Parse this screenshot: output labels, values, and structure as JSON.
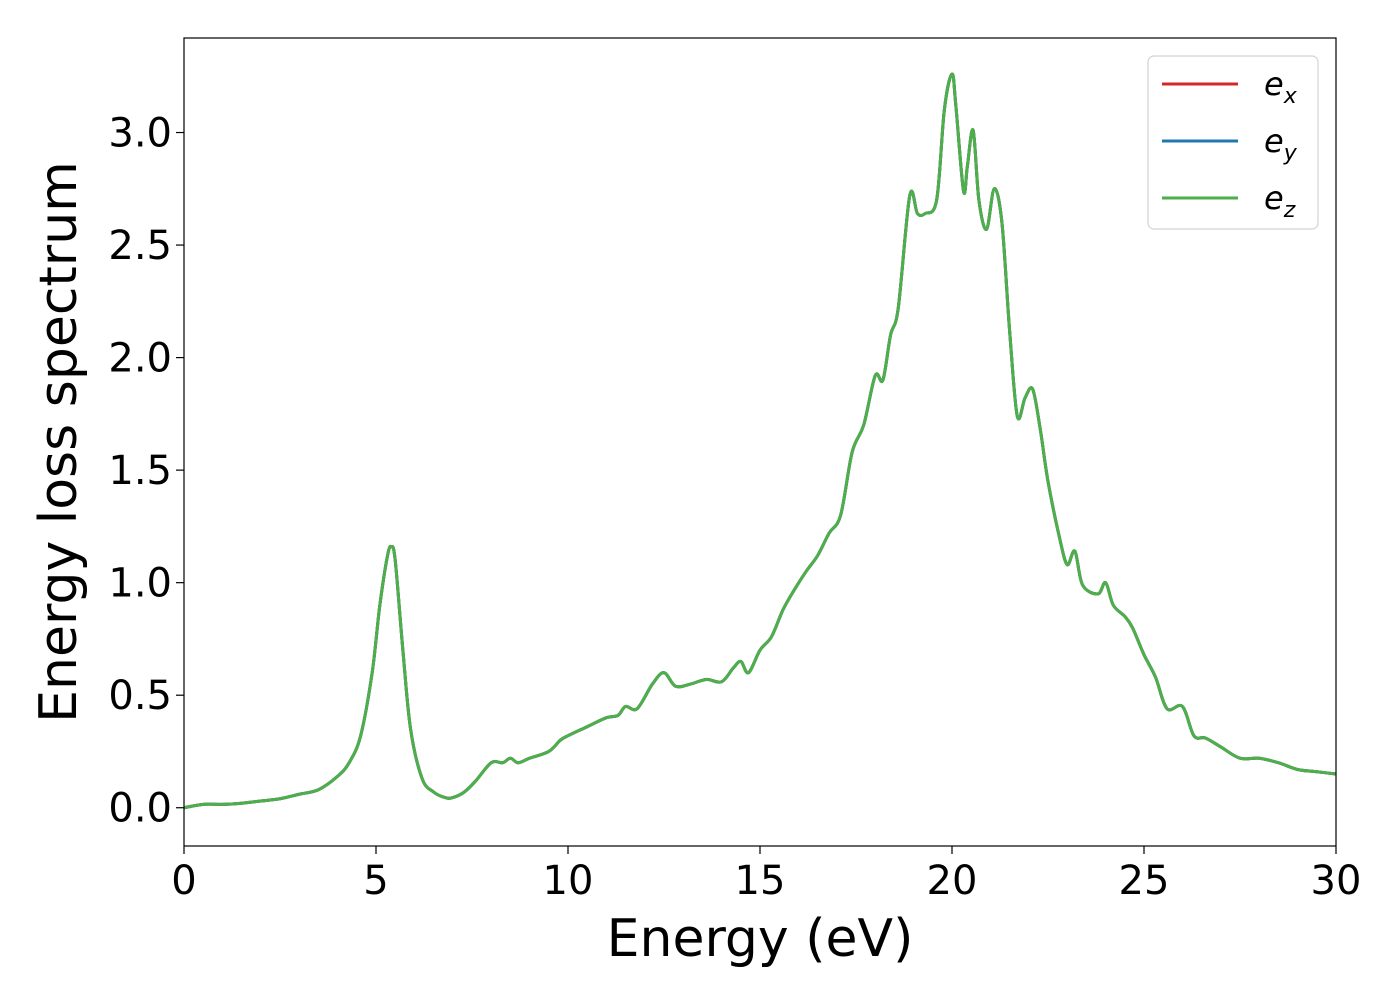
{
  "chart_data": {
    "type": "line",
    "title": "",
    "xlabel": "Energy (eV)",
    "ylabel": "Energy loss spectrum",
    "xlim": [
      0,
      30
    ],
    "ylim": [
      -0.17,
      3.42
    ],
    "xticks": [
      0,
      5,
      10,
      15,
      20,
      25,
      30
    ],
    "xtick_labels": [
      "0",
      "5",
      "10",
      "15",
      "20",
      "25",
      "30"
    ],
    "yticks": [
      0.0,
      0.5,
      1.0,
      1.5,
      2.0,
      2.5,
      3.0
    ],
    "ytick_labels": [
      "0.0",
      "0.5",
      "1.0",
      "1.5",
      "2.0",
      "2.5",
      "3.0"
    ],
    "grid": false,
    "legend_position": "top-right",
    "series": [
      {
        "name": "e",
        "sub": "x",
        "color": "#d62728"
      },
      {
        "name": "e",
        "sub": "y",
        "color": "#1f77b4"
      },
      {
        "name": "e",
        "sub": "z",
        "color": "#4daf4a"
      }
    ],
    "x": [
      0,
      0.5,
      1.0,
      1.5,
      2.0,
      2.5,
      3.0,
      3.5,
      4.0,
      4.3,
      4.6,
      4.9,
      5.1,
      5.3,
      5.4,
      5.5,
      5.7,
      5.9,
      6.2,
      6.5,
      6.8,
      7.0,
      7.3,
      7.6,
      8.0,
      8.3,
      8.5,
      8.7,
      9.0,
      9.5,
      9.8,
      10.0,
      10.5,
      11.0,
      11.3,
      11.5,
      11.8,
      12.2,
      12.5,
      12.8,
      13.2,
      13.6,
      14.0,
      14.3,
      14.5,
      14.7,
      15.0,
      15.3,
      15.6,
      15.9,
      16.2,
      16.5,
      16.8,
      17.1,
      17.4,
      17.7,
      18.0,
      18.2,
      18.4,
      18.6,
      18.9,
      19.1,
      19.3,
      19.6,
      19.8,
      20.0,
      20.1,
      20.3,
      20.4,
      20.55,
      20.7,
      20.9,
      21.1,
      21.3,
      21.5,
      21.7,
      21.9,
      22.1,
      22.3,
      22.5,
      22.8,
      23.0,
      23.2,
      23.4,
      23.8,
      24.0,
      24.2,
      24.5,
      24.7,
      25.0,
      25.3,
      25.6,
      26.0,
      26.3,
      26.6,
      27.0,
      27.5,
      28.0,
      28.5,
      29.0,
      29.5,
      30.0
    ],
    "values": [
      0.0,
      0.015,
      0.015,
      0.02,
      0.03,
      0.04,
      0.06,
      0.08,
      0.14,
      0.2,
      0.32,
      0.6,
      0.9,
      1.12,
      1.16,
      1.1,
      0.7,
      0.35,
      0.13,
      0.07,
      0.045,
      0.045,
      0.07,
      0.12,
      0.2,
      0.2,
      0.22,
      0.2,
      0.22,
      0.25,
      0.3,
      0.32,
      0.36,
      0.4,
      0.41,
      0.45,
      0.44,
      0.55,
      0.6,
      0.54,
      0.55,
      0.57,
      0.56,
      0.62,
      0.65,
      0.6,
      0.7,
      0.76,
      0.88,
      0.97,
      1.05,
      1.12,
      1.22,
      1.3,
      1.58,
      1.7,
      1.92,
      1.9,
      2.1,
      2.22,
      2.72,
      2.64,
      2.64,
      2.7,
      3.1,
      3.26,
      3.12,
      2.74,
      2.85,
      3.01,
      2.7,
      2.57,
      2.75,
      2.6,
      2.12,
      1.74,
      1.82,
      1.86,
      1.68,
      1.45,
      1.2,
      1.08,
      1.14,
      0.99,
      0.95,
      1.0,
      0.9,
      0.85,
      0.8,
      0.68,
      0.58,
      0.44,
      0.45,
      0.32,
      0.31,
      0.27,
      0.22,
      0.22,
      0.2,
      0.17,
      0.16,
      0.15
    ]
  }
}
